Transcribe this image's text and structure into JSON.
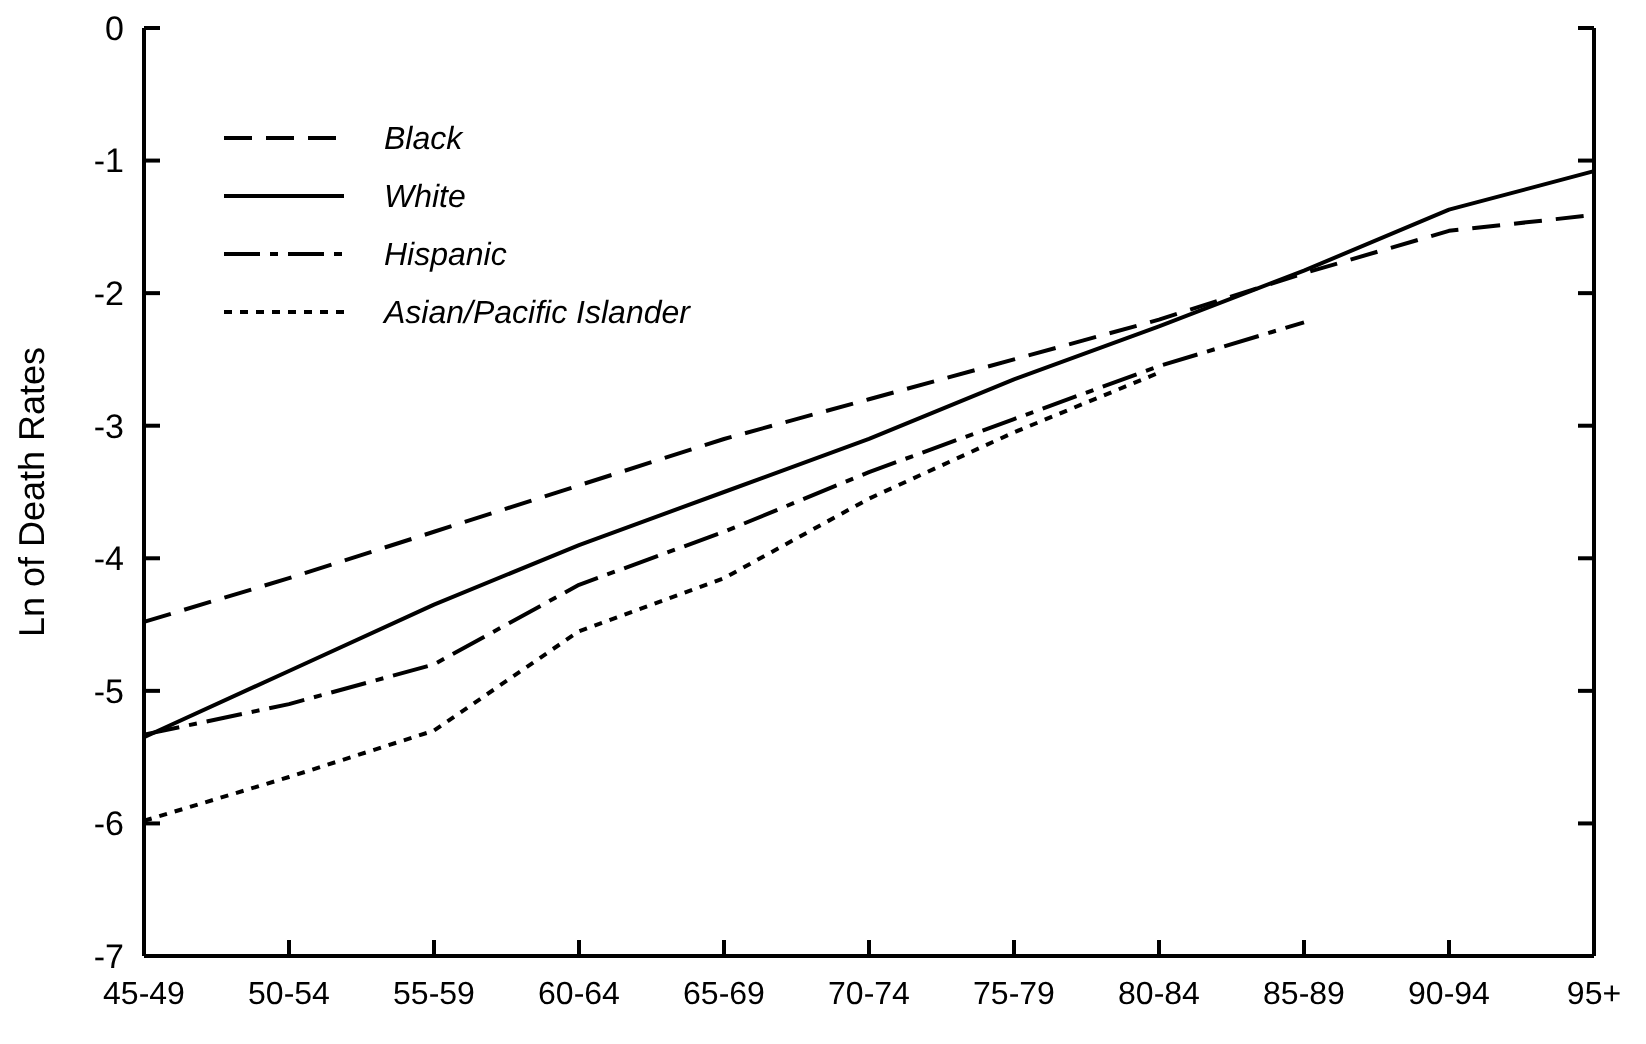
{
  "chart_data": {
    "type": "line",
    "ylabel": "Ln of Death Rates",
    "categories": [
      "45-49",
      "50-54",
      "55-59",
      "60-64",
      "65-69",
      "70-74",
      "75-79",
      "80-84",
      "85-89",
      "90-94",
      "95+"
    ],
    "series": [
      {
        "name": "Black",
        "color": "#000000",
        "line_style": "dashed",
        "values": [
          -4.48,
          -4.15,
          -3.8,
          -3.45,
          -3.1,
          -2.8,
          -2.5,
          -2.2,
          -1.85,
          -1.53,
          -1.41
        ]
      },
      {
        "name": "White",
        "color": "#000000",
        "line_style": "solid",
        "values": [
          -5.35,
          -4.85,
          -4.35,
          -3.9,
          -3.5,
          -3.1,
          -2.65,
          -2.25,
          -1.83,
          -1.37,
          -1.08
        ]
      },
      {
        "name": "Hispanic",
        "color": "#000000",
        "line_style": "dashdot",
        "values": [
          -5.33,
          -5.1,
          -4.8,
          -4.2,
          -3.8,
          -3.35,
          -2.95,
          -2.55,
          -2.22,
          null,
          null
        ]
      },
      {
        "name": "Asian/Pacific Islander",
        "color": "#000000",
        "line_style": "dotted",
        "values": [
          -5.98,
          -5.65,
          -5.3,
          -4.55,
          -4.15,
          -3.55,
          -3.05,
          -2.6,
          null,
          null,
          null
        ]
      }
    ],
    "ylim": [
      -7,
      0
    ],
    "yticks": [
      -7,
      -6,
      -5,
      -4,
      -3,
      -2,
      -1,
      0
    ],
    "grid": false,
    "legend": "top left"
  }
}
